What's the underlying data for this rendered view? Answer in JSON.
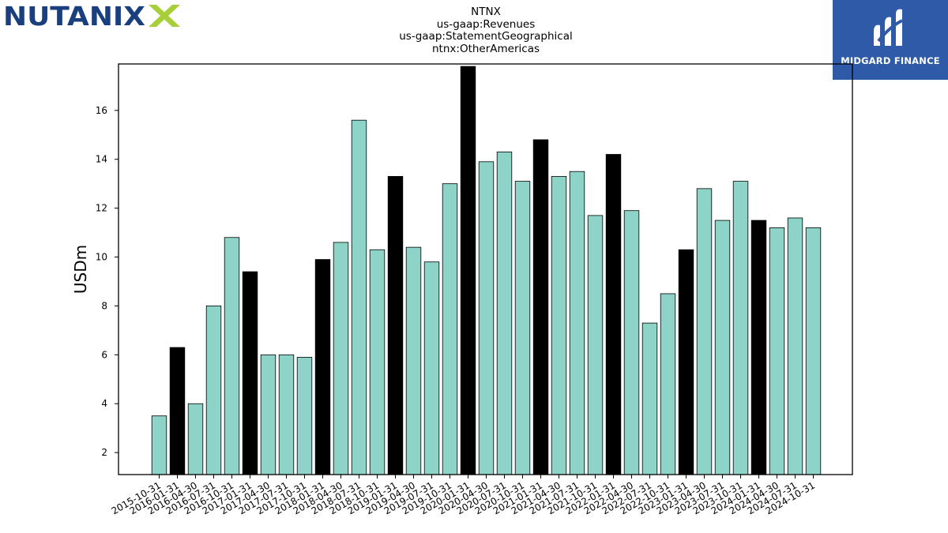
{
  "logos": {
    "left_text": "NUTANIX",
    "right_text": "MIDGARD FINANCE"
  },
  "colors": {
    "bar_regular": "#8dd3c7",
    "bar_highlight": "#000000",
    "logo_blue": "#1a3f7e",
    "logo_green": "#a8cf3a",
    "panel_blue": "#2e5aa8"
  },
  "chart_data": {
    "type": "bar",
    "title_lines": [
      "NTNX",
      "us-gaap:Revenues",
      "us-gaap:StatementGeographical",
      "ntnx:OtherAmericas"
    ],
    "xlabel": "",
    "ylabel": "USDm",
    "ylim": [
      1.1,
      17.9
    ],
    "yticks": [
      2,
      4,
      6,
      8,
      10,
      12,
      14,
      16
    ],
    "grid": false,
    "categories": [
      "2015-10-31",
      "2016-01-31",
      "2016-04-30",
      "2016-07-31",
      "2016-10-31",
      "2017-01-31",
      "2017-04-30",
      "2017-07-31",
      "2017-10-31",
      "2018-01-31",
      "2018-04-30",
      "2018-07-31",
      "2018-10-31",
      "2019-01-31",
      "2019-04-30",
      "2019-07-31",
      "2019-10-31",
      "2020-01-31",
      "2020-04-30",
      "2020-07-31",
      "2020-10-31",
      "2021-01-31",
      "2021-04-30",
      "2021-07-31",
      "2021-10-31",
      "2022-01-31",
      "2022-04-30",
      "2022-07-31",
      "2022-10-31",
      "2023-01-31",
      "2023-04-30",
      "2023-07-31",
      "2023-10-31",
      "2024-01-31",
      "2024-04-30",
      "2024-07-31",
      "2024-10-31"
    ],
    "values": [
      3.5,
      6.3,
      4.0,
      8.0,
      10.8,
      9.4,
      6.0,
      6.0,
      5.9,
      9.9,
      10.6,
      15.6,
      10.3,
      13.3,
      10.4,
      9.8,
      13.0,
      17.8,
      13.9,
      14.3,
      13.1,
      14.8,
      13.3,
      13.5,
      11.7,
      14.2,
      11.9,
      7.3,
      8.5,
      10.3,
      12.8,
      11.5,
      13.1,
      11.5,
      11.2,
      11.6,
      11.2
    ],
    "highlight": [
      false,
      true,
      false,
      false,
      false,
      true,
      false,
      false,
      false,
      true,
      false,
      false,
      false,
      true,
      false,
      false,
      false,
      true,
      false,
      false,
      false,
      true,
      false,
      false,
      false,
      true,
      false,
      false,
      false,
      true,
      false,
      false,
      false,
      true,
      false,
      false,
      false
    ]
  }
}
